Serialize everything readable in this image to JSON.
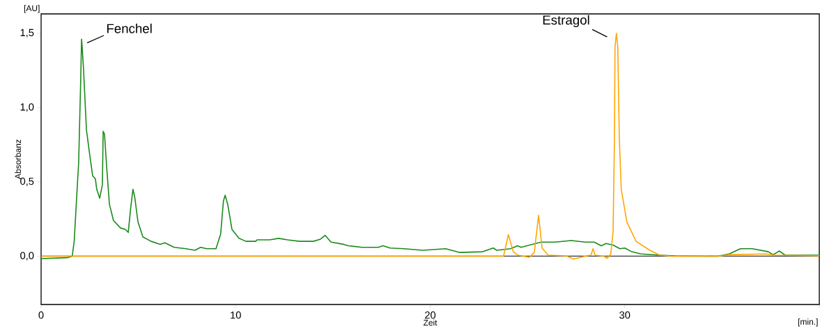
{
  "chart_data": {
    "type": "line",
    "xlabel": "Zeit",
    "ylabel": "Absorbanz",
    "xlim": [
      0,
      40
    ],
    "ylim": [
      -0.325,
      1.63
    ],
    "xticks": [
      0,
      10,
      20,
      30,
      {
        "value": 40,
        "label": null
      }
    ],
    "yticks": [
      {
        "value": 0,
        "label": "0,0"
      },
      {
        "value": 0.5,
        "label": "0,5"
      },
      {
        "value": 1,
        "label": "1,0"
      },
      {
        "value": 1.5,
        "label": "1,5"
      }
    ],
    "ref_lines": [
      {
        "axis": "y",
        "value": 0,
        "color": "#404040"
      }
    ],
    "annotations": [
      "[AU]",
      "[min.]",
      {
        "text": "Fenchel",
        "x": 2.08,
        "y": 1.46
      },
      {
        "text": "Estragol",
        "x": 29.57,
        "y": 1.5
      }
    ],
    "series": [
      {
        "color": "#1a8a1a",
        "x": [
          0,
          1.35,
          1.6,
          1.7,
          1.93,
          2.04,
          2.08,
          2.11,
          2.18,
          2.33,
          2.47,
          2.65,
          2.79,
          2.86,
          3.01,
          3.15,
          3.19,
          3.26,
          3.37,
          3.51,
          3.72,
          4.08,
          4.33,
          4.48,
          4.6,
          4.72,
          4.81,
          4.98,
          5.23,
          5.65,
          6.12,
          6.36,
          6.84,
          7.44,
          7.91,
          8.2,
          8.51,
          8.99,
          9.23,
          9.37,
          9.46,
          9.59,
          9.81,
          10.17,
          10.53,
          11.03,
          11.1,
          11.74,
          12.21,
          12.67,
          13.28,
          14.0,
          14.36,
          14.6,
          14.9,
          15.54,
          15.79,
          16.5,
          17.33,
          17.58,
          17.93,
          18.65,
          19.62,
          20.8,
          21.52,
          22.7,
          23.24,
          23.42,
          24.13,
          24.49,
          24.67,
          25.7,
          26.42,
          27.25,
          27.96,
          28.43,
          28.79,
          29.04,
          29.4,
          29.75,
          30.0,
          30.36,
          30.83,
          31.8,
          32.6,
          34.77,
          35.37,
          35.95,
          36.56,
          37.38,
          37.63,
          37.95,
          38.24,
          40.0
        ],
        "values": [
          -0.016,
          -0.01,
          0.0,
          0.1,
          0.63,
          1.21,
          1.46,
          1.41,
          1.26,
          0.85,
          0.71,
          0.54,
          0.52,
          0.45,
          0.39,
          0.48,
          0.84,
          0.82,
          0.6,
          0.35,
          0.24,
          0.19,
          0.18,
          0.16,
          0.32,
          0.45,
          0.4,
          0.23,
          0.13,
          0.1,
          0.08,
          0.09,
          0.06,
          0.05,
          0.04,
          0.06,
          0.05,
          0.05,
          0.15,
          0.37,
          0.41,
          0.35,
          0.18,
          0.12,
          0.1,
          0.1,
          0.11,
          0.11,
          0.12,
          0.11,
          0.1,
          0.1,
          0.115,
          0.14,
          0.095,
          0.08,
          0.07,
          0.06,
          0.06,
          0.07,
          0.055,
          0.05,
          0.04,
          0.05,
          0.025,
          0.03,
          0.055,
          0.04,
          0.05,
          0.07,
          0.06,
          0.095,
          0.095,
          0.105,
          0.095,
          0.095,
          0.07,
          0.085,
          0.075,
          0.05,
          0.055,
          0.03,
          0.015,
          0.007,
          0.002,
          0.0,
          0.015,
          0.05,
          0.05,
          0.03,
          0.01,
          0.035,
          0.007,
          0.007
        ]
      },
      {
        "color": "#ffa500",
        "x": [
          0,
          23.5,
          23.77,
          24.02,
          24.27,
          24.5,
          25.1,
          25.35,
          25.57,
          25.75,
          26.06,
          27.0,
          27.36,
          27.96,
          28.26,
          28.37,
          28.47,
          28.93,
          29.1,
          29.28,
          29.4,
          29.47,
          29.5,
          29.57,
          29.64,
          29.72,
          29.82,
          30.11,
          30.58,
          31.29,
          31.79,
          32.4,
          34.8,
          35.37,
          37.27,
          37.7,
          40
        ],
        "values": [
          0,
          0,
          0.0,
          0.145,
          0.03,
          0.007,
          -0.007,
          0.025,
          0.275,
          0.055,
          0.007,
          0.002,
          -0.02,
          0.0,
          0.007,
          0.05,
          0.007,
          0.0,
          -0.015,
          0.015,
          0.165,
          0.79,
          1.41,
          1.5,
          1.41,
          0.79,
          0.45,
          0.23,
          0.1,
          0.04,
          0.007,
          0.0,
          0.0,
          0.01,
          0.015,
          0.007,
          0.003
        ]
      }
    ]
  }
}
